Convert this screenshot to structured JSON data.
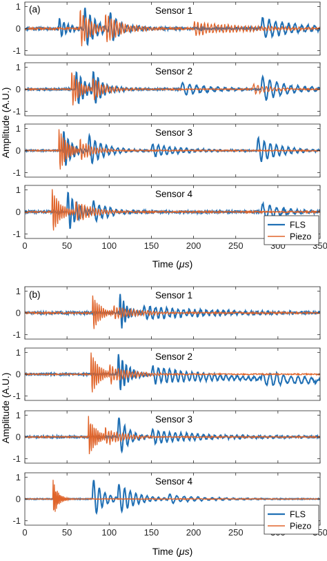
{
  "figure": {
    "panel_tags": [
      "(a)",
      "(b)"
    ],
    "ylabel": "Amplitude (A.U.)",
    "xlabel": "Time (",
    "xlabel_unit": "μs",
    "xlabel_close": ")",
    "legend": [
      "FLS",
      "Piezo"
    ],
    "colors": {
      "FLS": "#1f6fb4",
      "Piezo": "#e0642a"
    }
  },
  "chart_data": [
    {
      "type": "line",
      "panel": "(a)",
      "xlim": [
        0,
        350
      ],
      "ylim": [
        -1.2,
        1.2
      ],
      "xticks": [
        0,
        50,
        100,
        150,
        200,
        250,
        300,
        350
      ],
      "yticks": [
        -1,
        0,
        1
      ],
      "grid": false,
      "legend_position": "bottom-right of last subplot",
      "subplots": [
        {
          "title": "Sensor 1",
          "series": [
            {
              "name": "FLS",
              "bursts": [
                {
                  "t0": 40,
                  "amp": 0.5,
                  "f": 0.2,
                  "w": 12
                },
                {
                  "t0": 70,
                  "amp": 1.0,
                  "f": 0.17,
                  "w": 14
                },
                {
                  "t0": 100,
                  "amp": 0.7,
                  "f": 0.15,
                  "w": 15
                },
                {
                  "t0": 280,
                  "amp": 0.5,
                  "f": 0.13,
                  "w": 40
                }
              ],
              "noise": 0.05,
              "seed": 11
            },
            {
              "name": "Piezo",
              "bursts": [
                {
                  "t0": 65,
                  "amp": 0.9,
                  "f": 0.3,
                  "w": 14
                },
                {
                  "t0": 95,
                  "amp": 0.6,
                  "f": 0.3,
                  "w": 20
                },
                {
                  "t0": 200,
                  "amp": 0.3,
                  "f": 0.25,
                  "w": 60
                }
              ],
              "noise": 0.05,
              "seed": 12
            }
          ]
        },
        {
          "title": "Sensor 2",
          "series": [
            {
              "name": "FLS",
              "bursts": [
                {
                  "t0": 60,
                  "amp": 0.9,
                  "f": 0.2,
                  "w": 12
                },
                {
                  "t0": 80,
                  "amp": 0.7,
                  "f": 0.18,
                  "w": 15
                },
                {
                  "t0": 185,
                  "amp": 0.3,
                  "f": 0.12,
                  "w": 30
                },
                {
                  "t0": 280,
                  "amp": 0.6,
                  "f": 0.12,
                  "w": 30
                }
              ],
              "noise": 0.04,
              "seed": 21
            },
            {
              "name": "Piezo",
              "bursts": [
                {
                  "t0": 55,
                  "amp": 0.9,
                  "f": 0.35,
                  "w": 10
                },
                {
                  "t0": 80,
                  "amp": 0.5,
                  "f": 0.3,
                  "w": 15
                },
                {
                  "t0": 270,
                  "amp": 0.25,
                  "f": 0.2,
                  "w": 20
                }
              ],
              "noise": 0.03,
              "seed": 22
            }
          ]
        },
        {
          "title": "Sensor 3",
          "series": [
            {
              "name": "FLS",
              "bursts": [
                {
                  "t0": 45,
                  "amp": 1.0,
                  "f": 0.2,
                  "w": 10
                },
                {
                  "t0": 75,
                  "amp": 0.7,
                  "f": 0.15,
                  "w": 20
                },
                {
                  "t0": 150,
                  "amp": 0.3,
                  "f": 0.15,
                  "w": 35
                },
                {
                  "t0": 275,
                  "amp": 0.6,
                  "f": 0.14,
                  "w": 25
                }
              ],
              "noise": 0.03,
              "seed": 31
            },
            {
              "name": "Piezo",
              "bursts": [
                {
                  "t0": 40,
                  "amp": 1.1,
                  "f": 0.4,
                  "w": 10
                },
                {
                  "t0": 65,
                  "amp": 0.5,
                  "f": 0.3,
                  "w": 15
                }
              ],
              "noise": 0.03,
              "seed": 32
            }
          ]
        },
        {
          "title": "Sensor 4",
          "series": [
            {
              "name": "FLS",
              "bursts": [
                {
                  "t0": 50,
                  "amp": 1.0,
                  "f": 0.2,
                  "w": 12
                },
                {
                  "t0": 80,
                  "amp": 0.5,
                  "f": 0.15,
                  "w": 20
                },
                {
                  "t0": 280,
                  "amp": 0.4,
                  "f": 0.12,
                  "w": 25
                }
              ],
              "noise": 0.05,
              "seed": 41
            },
            {
              "name": "Piezo",
              "bursts": [
                {
                  "t0": 32,
                  "amp": 1.1,
                  "f": 0.4,
                  "w": 10
                },
                {
                  "t0": 60,
                  "amp": 0.5,
                  "f": 0.3,
                  "w": 20
                }
              ],
              "noise": 0.04,
              "seed": 42
            }
          ]
        }
      ]
    },
    {
      "type": "line",
      "panel": "(b)",
      "xlim": [
        0,
        350
      ],
      "ylim": [
        -1.2,
        1.2
      ],
      "xticks": [
        0,
        50,
        100,
        150,
        200,
        250,
        300,
        350
      ],
      "yticks": [
        -1,
        0,
        1
      ],
      "grid": false,
      "legend_position": "bottom-right of last subplot",
      "subplots": [
        {
          "title": "Sensor 1",
          "series": [
            {
              "name": "FLS",
              "bursts": [
                {
                  "t0": 112,
                  "amp": 1.0,
                  "f": 0.25,
                  "w": 8
                },
                {
                  "t0": 140,
                  "amp": 0.3,
                  "f": 0.15,
                  "w": 80
                }
              ],
              "noise": 0.05,
              "seed": 51
            },
            {
              "name": "Piezo",
              "bursts": [
                {
                  "t0": 80,
                  "amp": 0.9,
                  "f": 0.4,
                  "w": 10
                },
                {
                  "t0": 105,
                  "amp": 0.3,
                  "f": 0.3,
                  "w": 30
                }
              ],
              "noise": 0.04,
              "seed": 52
            }
          ]
        },
        {
          "title": "Sensor 2",
          "series": [
            {
              "name": "FLS",
              "bursts": [
                {
                  "t0": 110,
                  "amp": 1.0,
                  "f": 0.22,
                  "w": 12
                },
                {
                  "t0": 150,
                  "amp": 0.4,
                  "f": 0.15,
                  "w": 70
                },
                {
                  "t0": 280,
                  "amp": 0.3,
                  "f": 0.12,
                  "w": 60
                }
              ],
              "noise": 0.04,
              "seed": 61,
              "drift": -0.3
            },
            {
              "name": "Piezo",
              "bursts": [
                {
                  "t0": 78,
                  "amp": 1.1,
                  "f": 0.4,
                  "w": 10
                },
                {
                  "t0": 100,
                  "amp": 0.4,
                  "f": 0.3,
                  "w": 25
                }
              ],
              "noise": 0.03,
              "seed": 62
            }
          ]
        },
        {
          "title": "Sensor 3",
          "series": [
            {
              "name": "FLS",
              "bursts": [
                {
                  "t0": 110,
                  "amp": 1.0,
                  "f": 0.15,
                  "w": 12
                },
                {
                  "t0": 150,
                  "amp": 0.3,
                  "f": 0.15,
                  "w": 60
                }
              ],
              "noise": 0.04,
              "seed": 71
            },
            {
              "name": "Piezo",
              "bursts": [
                {
                  "t0": 75,
                  "amp": 1.0,
                  "f": 0.45,
                  "w": 10
                },
                {
                  "t0": 95,
                  "amp": 0.4,
                  "f": 0.3,
                  "w": 20
                }
              ],
              "noise": 0.03,
              "seed": 72
            }
          ]
        },
        {
          "title": "Sensor 4",
          "series": [
            {
              "name": "FLS",
              "bursts": [
                {
                  "t0": 80,
                  "amp": 1.0,
                  "f": 0.15,
                  "w": 12
                },
                {
                  "t0": 110,
                  "amp": 0.8,
                  "f": 0.15,
                  "w": 20
                },
                {
                  "t0": 170,
                  "amp": 0.2,
                  "f": 0.12,
                  "w": 40
                }
              ],
              "noise": 0.02,
              "seed": 81
            },
            {
              "name": "Piezo",
              "bursts": [
                {
                  "t0": 33,
                  "amp": 1.0,
                  "f": 0.6,
                  "w": 6
                }
              ],
              "noise": 0.02,
              "seed": 82
            }
          ]
        }
      ]
    }
  ]
}
